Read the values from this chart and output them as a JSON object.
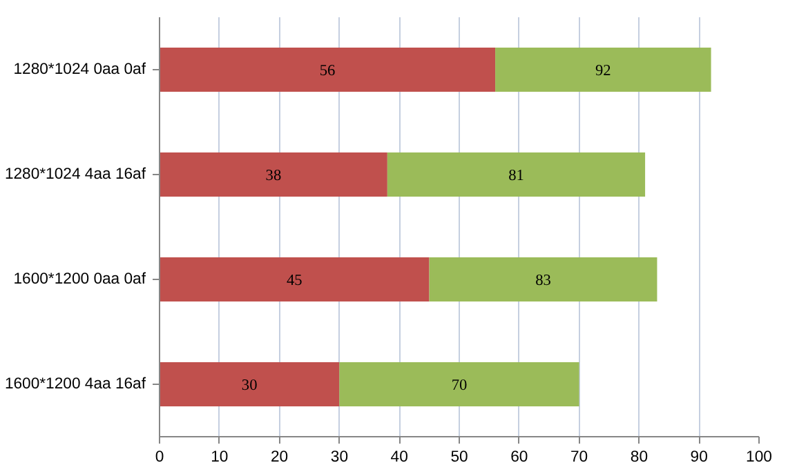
{
  "chart_data": {
    "type": "bar",
    "orientation": "horizontal",
    "stacked": true,
    "categories": [
      "1280*1024 0aa 0af",
      "1280*1024 4aa 16af",
      "1600*1200 0aa 0af",
      "1600*1200 4aa 16af"
    ],
    "series": [
      {
        "color": "#c0504d",
        "values": [
          56,
          38,
          45,
          30
        ],
        "value_labels": [
          "56",
          "38",
          "45",
          "30"
        ]
      },
      {
        "color": "#9bbb59",
        "values": [
          36,
          43,
          38,
          40
        ]
      }
    ],
    "totals": [
      "92",
      "81",
      "83",
      "70"
    ],
    "xlim": [
      0,
      100
    ],
    "xticks": [
      0,
      10,
      20,
      30,
      40,
      50,
      60,
      70,
      80,
      90,
      100
    ],
    "grid": "x"
  }
}
